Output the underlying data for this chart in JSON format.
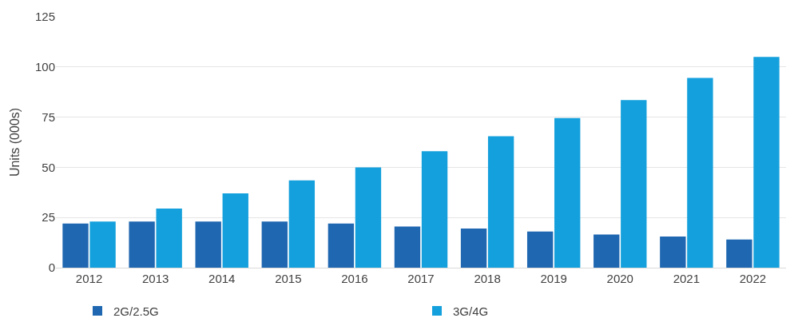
{
  "chart_data": {
    "type": "bar",
    "ylabel": "Units (000s)",
    "categories": [
      "2012",
      "2013",
      "2014",
      "2015",
      "2016",
      "2017",
      "2018",
      "2019",
      "2020",
      "2021",
      "2022"
    ],
    "series": [
      {
        "name": "2G/2.5G",
        "color": "#1f67b1",
        "values": [
          22,
          23,
          23,
          23,
          22,
          20.5,
          19.5,
          18,
          16.5,
          15.5,
          14
        ]
      },
      {
        "name": "3G/4G",
        "color": "#14a0dc",
        "values": [
          23,
          29.5,
          37,
          43.5,
          50,
          58,
          65.5,
          74.5,
          83.5,
          94.5,
          105
        ]
      }
    ],
    "ylim": [
      0,
      125
    ],
    "yticks": [
      0,
      25,
      50,
      75,
      100,
      125
    ],
    "grid": "y",
    "legend": "bottom"
  }
}
